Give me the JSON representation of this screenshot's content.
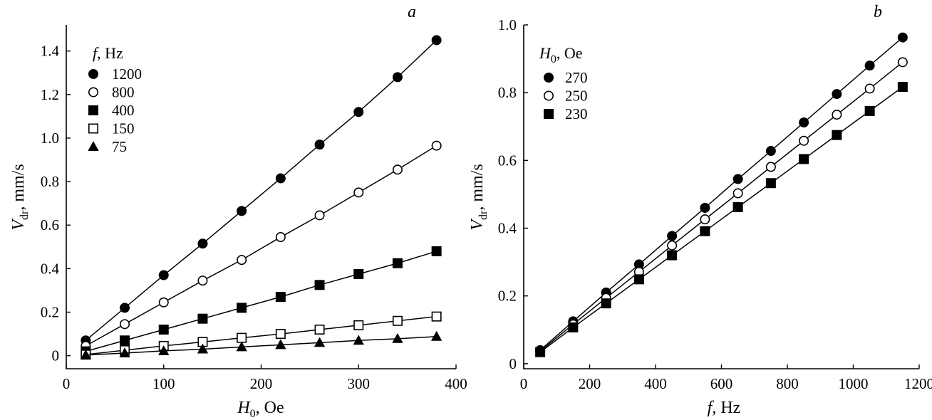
{
  "chart_data": [
    {
      "type": "scatter",
      "panel_label": "a",
      "xlabel": {
        "main": "H",
        "sub": "0",
        "rest": ", Oe"
      },
      "ylabel": {
        "main": "V",
        "sub": "dr",
        "rest": ", mm/s"
      },
      "xlim": [
        0,
        400
      ],
      "ylim": [
        -0.06,
        1.52
      ],
      "xticks": [
        0,
        100,
        200,
        300,
        400
      ],
      "xtick_labels": [
        "0",
        "100",
        "200",
        "300",
        "400"
      ],
      "yticks": [
        0,
        0.2,
        0.4,
        0.6,
        0.8,
        1.0,
        1.2,
        1.4
      ],
      "ytick_labels": [
        "0",
        "0.2",
        "0.4",
        "0.6",
        "0.8",
        "1.0",
        "1.2",
        "1.4"
      ],
      "grid": false,
      "legend": {
        "placement": "top-left",
        "title": {
          "main": "f",
          "rest": ", Hz"
        }
      },
      "x": [
        20,
        60,
        100,
        140,
        180,
        220,
        260,
        300,
        340,
        380
      ],
      "series": [
        {
          "name": "1200",
          "marker": "filled-circle",
          "values": [
            0.07,
            0.22,
            0.37,
            0.515,
            0.665,
            0.815,
            0.97,
            1.12,
            1.28,
            1.45
          ]
        },
        {
          "name": "800",
          "marker": "open-circle",
          "values": [
            0.045,
            0.145,
            0.245,
            0.345,
            0.44,
            0.545,
            0.645,
            0.75,
            0.855,
            0.965
          ]
        },
        {
          "name": "400",
          "marker": "filled-square",
          "values": [
            0.02,
            0.07,
            0.12,
            0.17,
            0.22,
            0.27,
            0.325,
            0.375,
            0.425,
            0.48
          ]
        },
        {
          "name": "150",
          "marker": "open-square",
          "values": [
            0.005,
            0.025,
            0.045,
            0.063,
            0.082,
            0.1,
            0.12,
            0.14,
            0.16,
            0.18
          ]
        },
        {
          "name": "75",
          "marker": "filled-triangle",
          "values": [
            0.003,
            0.012,
            0.022,
            0.03,
            0.04,
            0.05,
            0.06,
            0.07,
            0.078,
            0.088
          ]
        }
      ]
    },
    {
      "type": "scatter",
      "panel_label": "b",
      "xlabel": {
        "main": "f",
        "sub": "",
        "rest": ", Hz"
      },
      "ylabel": {
        "main": "V",
        "sub": "dr",
        "rest": ", mm/s"
      },
      "xlim": [
        0,
        1200
      ],
      "ylim": [
        -0.015,
        1.0
      ],
      "xticks": [
        0,
        200,
        400,
        600,
        800,
        1000,
        1200
      ],
      "xtick_labels": [
        "0",
        "200",
        "400",
        "600",
        "800",
        "1000",
        "1200"
      ],
      "yticks": [
        0,
        0.2,
        0.4,
        0.6,
        0.8,
        1.0
      ],
      "ytick_labels": [
        "0",
        "0.2",
        "0.4",
        "0.6",
        "0.8",
        "1.0"
      ],
      "grid": false,
      "legend": {
        "placement": "top-left",
        "title": {
          "main": "H",
          "sub": "0",
          "rest": ", Oe"
        }
      },
      "x": [
        50,
        150,
        250,
        350,
        450,
        550,
        650,
        750,
        850,
        950,
        1050,
        1150
      ],
      "series": [
        {
          "name": "270",
          "marker": "filled-circle",
          "values": [
            0.04,
            0.125,
            0.21,
            0.293,
            0.377,
            0.46,
            0.545,
            0.628,
            0.712,
            0.796,
            0.88,
            0.963
          ]
        },
        {
          "name": "250",
          "marker": "open-circle",
          "values": [
            0.037,
            0.116,
            0.194,
            0.271,
            0.349,
            0.426,
            0.503,
            0.581,
            0.658,
            0.735,
            0.812,
            0.89
          ]
        },
        {
          "name": "230",
          "marker": "filled-square",
          "values": [
            0.034,
            0.107,
            0.178,
            0.249,
            0.32,
            0.391,
            0.462,
            0.533,
            0.604,
            0.675,
            0.746,
            0.817
          ]
        }
      ]
    }
  ]
}
